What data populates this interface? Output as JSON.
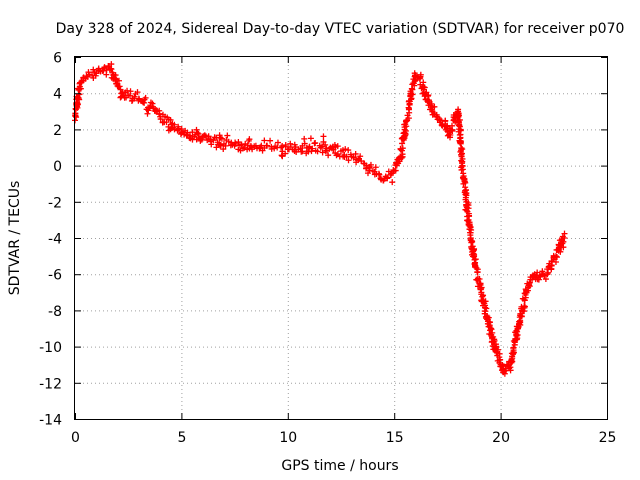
{
  "chart_data": {
    "type": "scatter",
    "title": "Day 328 of 2024, Sidereal Day-to-day VTEC variation (SDTVAR) for receiver p070",
    "xlabel": "GPS time / hours",
    "ylabel": "SDTVAR / TECUs",
    "xlim": [
      0,
      25
    ],
    "ylim": [
      -14,
      6
    ],
    "xticks": [
      "0",
      "5",
      "10",
      "15",
      "20",
      "25"
    ],
    "yticks": [
      "-14",
      "-12",
      "-10",
      "-8",
      "-6",
      "-4",
      "-2",
      "0",
      "2",
      "4",
      "6"
    ],
    "grid": true,
    "marker": "+",
    "color": "#ff0000",
    "series": [
      {
        "name": "SDTVAR",
        "x": [
          0.0,
          0.1,
          0.2,
          0.3,
          0.4,
          0.5,
          0.6,
          0.8,
          1.0,
          1.2,
          1.4,
          1.6,
          1.8,
          2.0,
          2.2,
          2.5,
          2.8,
          3.0,
          3.2,
          3.5,
          3.8,
          4.0,
          4.3,
          4.6,
          5.0,
          5.3,
          5.6,
          6.0,
          6.5,
          7.0,
          7.5,
          8.0,
          8.5,
          9.0,
          9.5,
          10.0,
          10.5,
          11.0,
          11.5,
          12.0,
          12.5,
          13.0,
          13.3,
          13.6,
          14.0,
          14.3,
          14.6,
          15.0,
          15.3,
          15.6,
          15.8,
          16.0,
          16.2,
          16.4,
          16.6,
          16.8,
          17.0,
          17.2,
          17.4,
          17.6,
          17.8,
          18.0,
          18.2,
          18.4,
          18.6,
          18.8,
          19.0,
          19.2,
          19.4,
          19.6,
          19.8,
          20.0,
          20.2,
          20.4,
          20.6,
          20.8,
          21.0,
          21.2,
          21.4,
          21.6,
          21.8,
          22.0,
          22.2,
          22.4,
          22.6,
          22.8,
          23.0
        ],
        "y": [
          2.5,
          3.5,
          4.2,
          4.6,
          4.7,
          4.8,
          4.9,
          5.0,
          5.1,
          5.2,
          5.4,
          5.5,
          5.0,
          4.4,
          4.0,
          3.9,
          3.8,
          3.7,
          3.5,
          3.2,
          3.0,
          2.7,
          2.4,
          2.1,
          1.8,
          1.7,
          1.6,
          1.6,
          1.4,
          1.2,
          1.1,
          1.2,
          1.1,
          1.1,
          1.0,
          0.9,
          0.9,
          1.0,
          1.1,
          1.0,
          0.8,
          0.5,
          0.3,
          0.1,
          -0.3,
          -0.5,
          -0.6,
          -0.3,
          0.5,
          2.5,
          4.0,
          5.0,
          4.8,
          4.2,
          3.5,
          3.0,
          2.8,
          2.5,
          2.2,
          1.8,
          2.5,
          3.0,
          0.0,
          -2.0,
          -4.0,
          -5.5,
          -6.5,
          -7.5,
          -8.5,
          -9.5,
          -10.3,
          -11.0,
          -11.5,
          -11.2,
          -10.3,
          -9.0,
          -8.0,
          -7.0,
          -6.3,
          -6.0,
          -6.3,
          -6.0,
          -6.0,
          -5.5,
          -5.0,
          -4.5,
          -4.0
        ]
      }
    ]
  }
}
